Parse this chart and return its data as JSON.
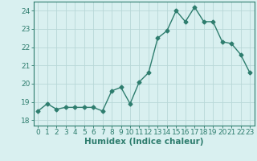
{
  "x": [
    0,
    1,
    2,
    3,
    4,
    5,
    6,
    7,
    8,
    9,
    10,
    11,
    12,
    13,
    14,
    15,
    16,
    17,
    18,
    19,
    20,
    21,
    22,
    23
  ],
  "y": [
    18.5,
    18.9,
    18.6,
    18.7,
    18.7,
    18.7,
    18.7,
    18.5,
    19.6,
    19.8,
    18.9,
    20.1,
    20.6,
    22.5,
    22.9,
    24.0,
    23.4,
    24.2,
    23.4,
    23.4,
    22.3,
    22.2,
    21.6,
    20.6
  ],
  "line_color": "#2e7d6e",
  "marker": "D",
  "marker_size": 2.5,
  "bg_color": "#d9f0f0",
  "grid_color": "#b8d8d8",
  "xlabel": "Humidex (Indice chaleur)",
  "xlim": [
    -0.5,
    23.5
  ],
  "ylim": [
    17.7,
    24.5
  ],
  "yticks": [
    18,
    19,
    20,
    21,
    22,
    23,
    24
  ],
  "xticks": [
    0,
    1,
    2,
    3,
    4,
    5,
    6,
    7,
    8,
    9,
    10,
    11,
    12,
    13,
    14,
    15,
    16,
    17,
    18,
    19,
    20,
    21,
    22,
    23
  ],
  "tick_color": "#2e7d6e",
  "label_color": "#2e7d6e",
  "xlabel_fontsize": 7.5,
  "tick_fontsize": 6.5,
  "linewidth": 1.0
}
